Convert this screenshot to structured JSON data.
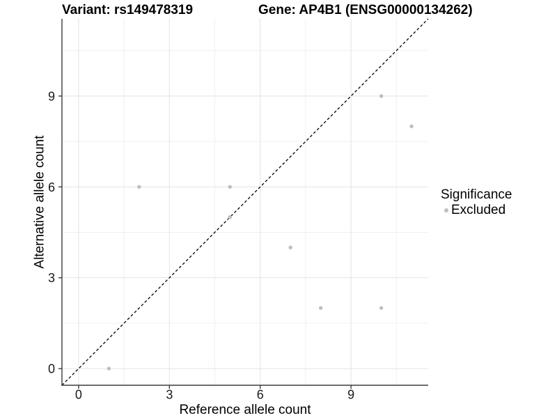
{
  "titles": {
    "left": "Variant: rs149478319",
    "right": "Gene: AP4B1 (ENSG00000134262)"
  },
  "chart_data": {
    "type": "scatter",
    "title": "Variant: rs149478319   Gene: AP4B1 (ENSG00000134262)",
    "xlabel": "Reference allele count",
    "ylabel": "Alternative allele count",
    "xlim": [
      -0.55,
      11.55
    ],
    "ylim": [
      -0.55,
      11.55
    ],
    "x_ticks": [
      0,
      3,
      6,
      9
    ],
    "y_ticks": [
      0,
      3,
      6,
      9
    ],
    "x_minor_ticks": [
      1.5,
      4.5,
      7.5,
      10.5
    ],
    "y_minor_ticks": [
      1.5,
      4.5,
      7.5,
      10.5
    ],
    "grid": true,
    "series": [
      {
        "name": "Excluded",
        "color": "#bebebe",
        "points": [
          [
            1,
            0
          ],
          [
            2,
            6
          ],
          [
            5,
            5
          ],
          [
            5,
            6
          ],
          [
            7,
            4
          ],
          [
            8,
            2
          ],
          [
            10,
            2
          ],
          [
            10,
            9
          ],
          [
            11,
            8
          ]
        ]
      }
    ],
    "identity_line": {
      "style": "dashed",
      "color": "#000000",
      "from": [
        -0.55,
        -0.55
      ],
      "to": [
        11.55,
        11.55
      ]
    },
    "legend": {
      "position": "right",
      "title": "Significance",
      "items": [
        {
          "label": "Excluded",
          "color": "#bebebe"
        }
      ]
    },
    "colors": {
      "point": "#bebebe",
      "axis_line": "#3c3c3c",
      "major_grid": "#e3e3e3",
      "minor_grid": "#f0f0f0",
      "tick_text": "#1a1a1a"
    }
  }
}
